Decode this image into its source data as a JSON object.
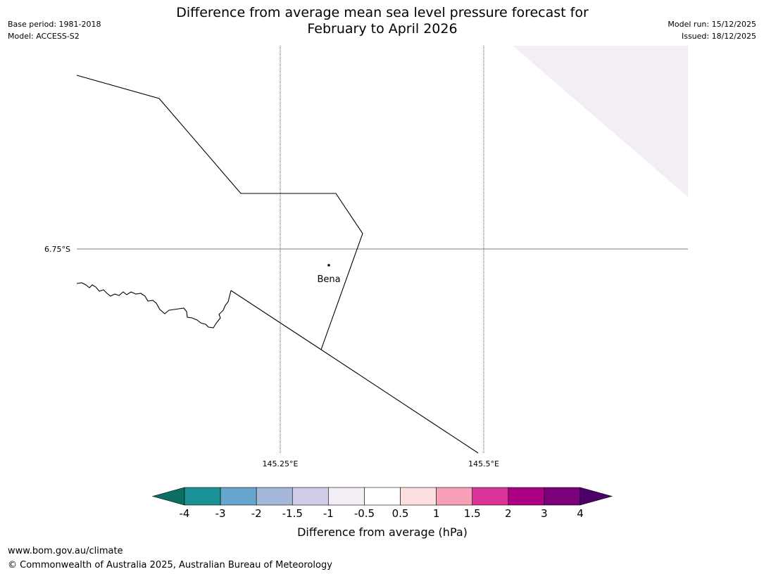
{
  "header": {
    "title_line1": "Difference from average mean sea level pressure forecast for",
    "title_line2": "February to April 2026",
    "base_period": "Base period: 1981-2018",
    "model": "Model: ACCESS-S2",
    "model_run": "Model run: 15/12/2025",
    "issued": "Issued: 18/12/2025"
  },
  "map": {
    "lat_label": "6.75°S",
    "lon_labels": [
      "145.25°E",
      "145.5°E"
    ],
    "place": {
      "name": "Bena"
    }
  },
  "colorbar": {
    "label": "Difference from average (hPa)",
    "ticks": [
      "-4",
      "-3",
      "-2",
      "-1.5",
      "-1",
      "-0.5",
      "0.5",
      "1",
      "1.5",
      "2",
      "3",
      "4"
    ],
    "bins": [
      {
        "range": "< -4",
        "color": "#0a6e62"
      },
      {
        "range": "-4 to -3",
        "color": "#1b9196"
      },
      {
        "range": "-3 to -2",
        "color": "#66a6cf"
      },
      {
        "range": "-2 to -1.5",
        "color": "#a5b8d9"
      },
      {
        "range": "-1.5 to -1",
        "color": "#cecce6"
      },
      {
        "range": "-1 to -0.5",
        "color": "#f3eef6"
      },
      {
        "range": "-0.5 to 0.5",
        "color": "#ffffff"
      },
      {
        "range": "0.5 to 1",
        "color": "#fddfe0"
      },
      {
        "range": "1 to 1.5",
        "color": "#f89fb8"
      },
      {
        "range": "1.5 to 2",
        "color": "#db3498"
      },
      {
        "range": "2 to 3",
        "color": "#ac0083"
      },
      {
        "range": "3 to 4",
        "color": "#7c0079"
      },
      {
        "range": "> 4",
        "color": "#4c006a"
      }
    ]
  },
  "footer": {
    "url": "www.bom.gov.au/climate",
    "copyright": "© Commonwealth of Australia 2025, Australian Bureau of Meteorology"
  }
}
